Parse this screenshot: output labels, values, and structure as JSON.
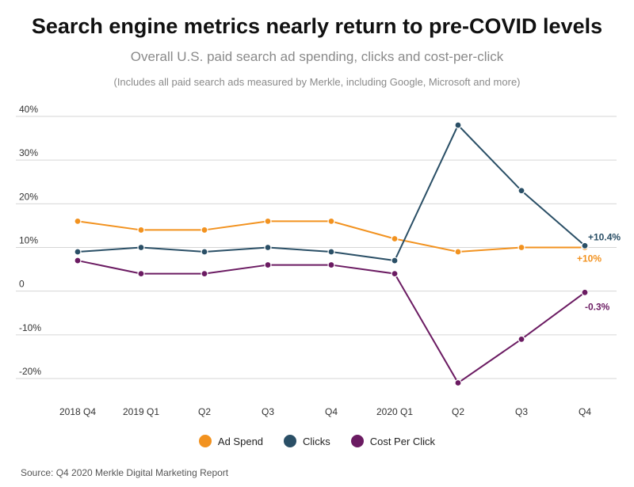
{
  "chart_data": {
    "type": "line",
    "title": "Search engine metrics nearly return to pre-COVID levels",
    "subtitle": "Overall U.S. paid search ad spending, clicks and cost-per-click",
    "note": "(Includes all paid search ads measured by Merkle, including Google, Microsoft and more)",
    "categories": [
      "2018 Q4",
      "2019 Q1",
      "Q2",
      "Q3",
      "Q4",
      "2020 Q1",
      "Q2",
      "Q3",
      "Q4"
    ],
    "y_ticks": [
      {
        "value": 40,
        "label": "40%"
      },
      {
        "value": 30,
        "label": "30%"
      },
      {
        "value": 20,
        "label": "20%"
      },
      {
        "value": 10,
        "label": "10%"
      },
      {
        "value": 0,
        "label": "0"
      },
      {
        "value": -10,
        "label": "-10%"
      },
      {
        "value": -20,
        "label": "-20%"
      }
    ],
    "ylim": [
      -20,
      40
    ],
    "grid": true,
    "legend_position": "bottom",
    "series": [
      {
        "name": "Ad Spend",
        "color": "#f2921f",
        "values": [
          16,
          14,
          14,
          16,
          16,
          12,
          9,
          10,
          10
        ],
        "end_label": "+10%"
      },
      {
        "name": "Clicks",
        "color": "#2a4f66",
        "values": [
          9,
          10,
          9,
          10,
          9,
          7,
          38,
          23,
          10.4
        ],
        "end_label": "+10.4%"
      },
      {
        "name": "Cost Per Click",
        "color": "#6b1b62",
        "values": [
          7,
          4,
          4,
          6,
          6,
          4,
          -21,
          -11,
          -0.3
        ],
        "end_label": "-0.3%"
      }
    ]
  },
  "source": "Source: Q4 2020 Merkle Digital Marketing Report"
}
